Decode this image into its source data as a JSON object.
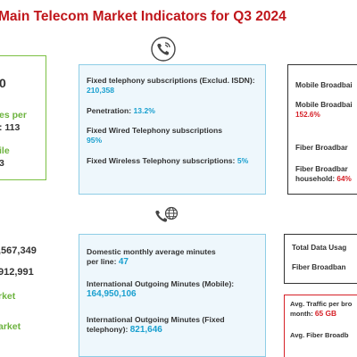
{
  "title": "Main Telecom Market Indicators for Q3 2024",
  "left_top": {
    "line1": "0",
    "line2": "es per",
    "line3_prefix": ": ",
    "line3_value": "113",
    "line4": "ile",
    "line5": "3"
  },
  "left_bottom": {
    "line1": ",567,349",
    "line2": "912,991",
    "line3": "rket",
    "line4": "arket"
  },
  "fixed_telephony": {
    "sub_label": "Fixed telephony subscriptions (Exclud. ISDN): ",
    "sub_value": "210,358",
    "pen_label": "Penetration: ",
    "pen_value": "13.2%",
    "wired_label": "Fixed Wired Telephony subscriptions",
    "wired_value": "95%",
    "wireless_label": "Fixed Wireless Telephony subscriptions: ",
    "wireless_value": "5%"
  },
  "minutes": {
    "domestic_label": "Domestic monthly average minutes per line: ",
    "domestic_value": "47",
    "intl_mobile_label": "International Outgoing Minutes (Mobile): ",
    "intl_mobile_value": "164,950,106",
    "intl_fixed_label": "International Outgoing Minutes (Fixed telephony): ",
    "intl_fixed_value": "821,646"
  },
  "broadband": {
    "mobile_label": "Mobile Broadbai",
    "mobile_pen_label": "Mobile Broadbai",
    "mobile_pen_value": "152.6%",
    "fiber_label": "Fiber Broadbar",
    "fiber_household_label": "Fiber Broadbar household: ",
    "fiber_household_value": "64%"
  },
  "data_usage": {
    "total_label": "Total Data Usag",
    "fiber_label": "Fiber Broadban"
  },
  "traffic": {
    "avg_label": "Avg. Traffic per bro month: ",
    "avg_value": "65 GB",
    "fiber_avg_label": "Avg. Fiber Broadb"
  },
  "icons": [
    "phone-icon",
    "globe-phone-icon"
  ],
  "colors": {
    "title": "#c0161b",
    "accent_blue": "#1aa0cf",
    "accent_green": "#6db33f",
    "accent_red": "#d62027"
  }
}
